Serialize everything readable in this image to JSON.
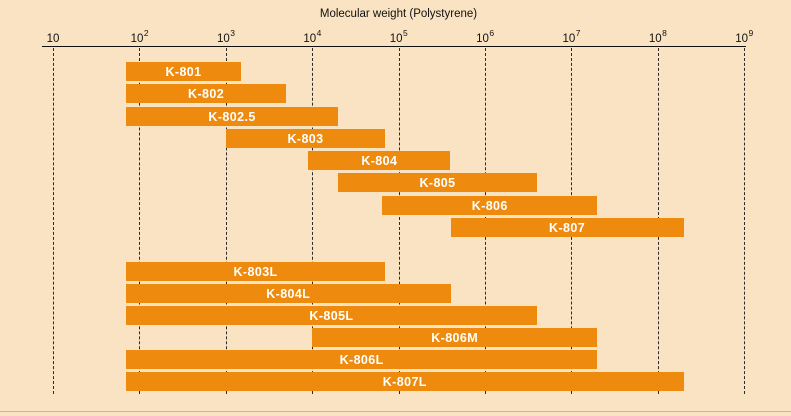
{
  "colors": {
    "panel_background": "#fae3c2",
    "bar_fill": "#ee8b0e",
    "bar_label_text": "#ffffff",
    "axis_and_text": "#111111",
    "bottom_rule": "#8298c4"
  },
  "chart_data": {
    "type": "bar",
    "subtype": "horizontal-log-range-bars",
    "title": "Molecular weight (Polystyrene)",
    "xlabel": "Molecular weight (Polystyrene)",
    "x_scale": "log10",
    "xlim": [
      10,
      1000000000
    ],
    "grid": "vertical-dashed-per-decade",
    "legend": "none",
    "x_ticks": [
      {
        "mantissa": "10",
        "exponent": ""
      },
      {
        "mantissa": "10",
        "exponent": "2"
      },
      {
        "mantissa": "10",
        "exponent": "3"
      },
      {
        "mantissa": "10",
        "exponent": "4"
      },
      {
        "mantissa": "10",
        "exponent": "5"
      },
      {
        "mantissa": "10",
        "exponent": "6"
      },
      {
        "mantissa": "10",
        "exponent": "7"
      },
      {
        "mantissa": "10",
        "exponent": "8"
      },
      {
        "mantissa": "10",
        "exponent": "9"
      }
    ],
    "rows": [
      {
        "label": "K-801",
        "group": "upper",
        "mw_from": 70,
        "mw_to": 1500
      },
      {
        "label": "K-802",
        "group": "upper",
        "mw_from": 70,
        "mw_to": 5000
      },
      {
        "label": "K-802.5",
        "group": "upper",
        "mw_from": 70,
        "mw_to": 20000
      },
      {
        "label": "K-803",
        "group": "upper",
        "mw_from": 1000,
        "mw_to": 70000
      },
      {
        "label": "K-804",
        "group": "upper",
        "mw_from": 9000,
        "mw_to": 400000
      },
      {
        "label": "K-805",
        "group": "upper",
        "mw_from": 20000,
        "mw_to": 4000000
      },
      {
        "label": "K-806",
        "group": "upper",
        "mw_from": 65000,
        "mw_to": 20000000
      },
      {
        "label": "K-807",
        "group": "upper",
        "mw_from": 400000,
        "mw_to": 200000000
      },
      {
        "label": "K-803L",
        "group": "lower",
        "mw_from": 70,
        "mw_to": 70000
      },
      {
        "label": "K-804L",
        "group": "lower",
        "mw_from": 70,
        "mw_to": 400000
      },
      {
        "label": "K-805L",
        "group": "lower",
        "mw_from": 70,
        "mw_to": 4000000
      },
      {
        "label": "K-806M",
        "group": "lower",
        "mw_from": 10000,
        "mw_to": 20000000
      },
      {
        "label": "K-806L",
        "group": "lower",
        "mw_from": 70,
        "mw_to": 20000000
      },
      {
        "label": "K-807L",
        "group": "lower",
        "mw_from": 70,
        "mw_to": 200000000
      }
    ]
  }
}
